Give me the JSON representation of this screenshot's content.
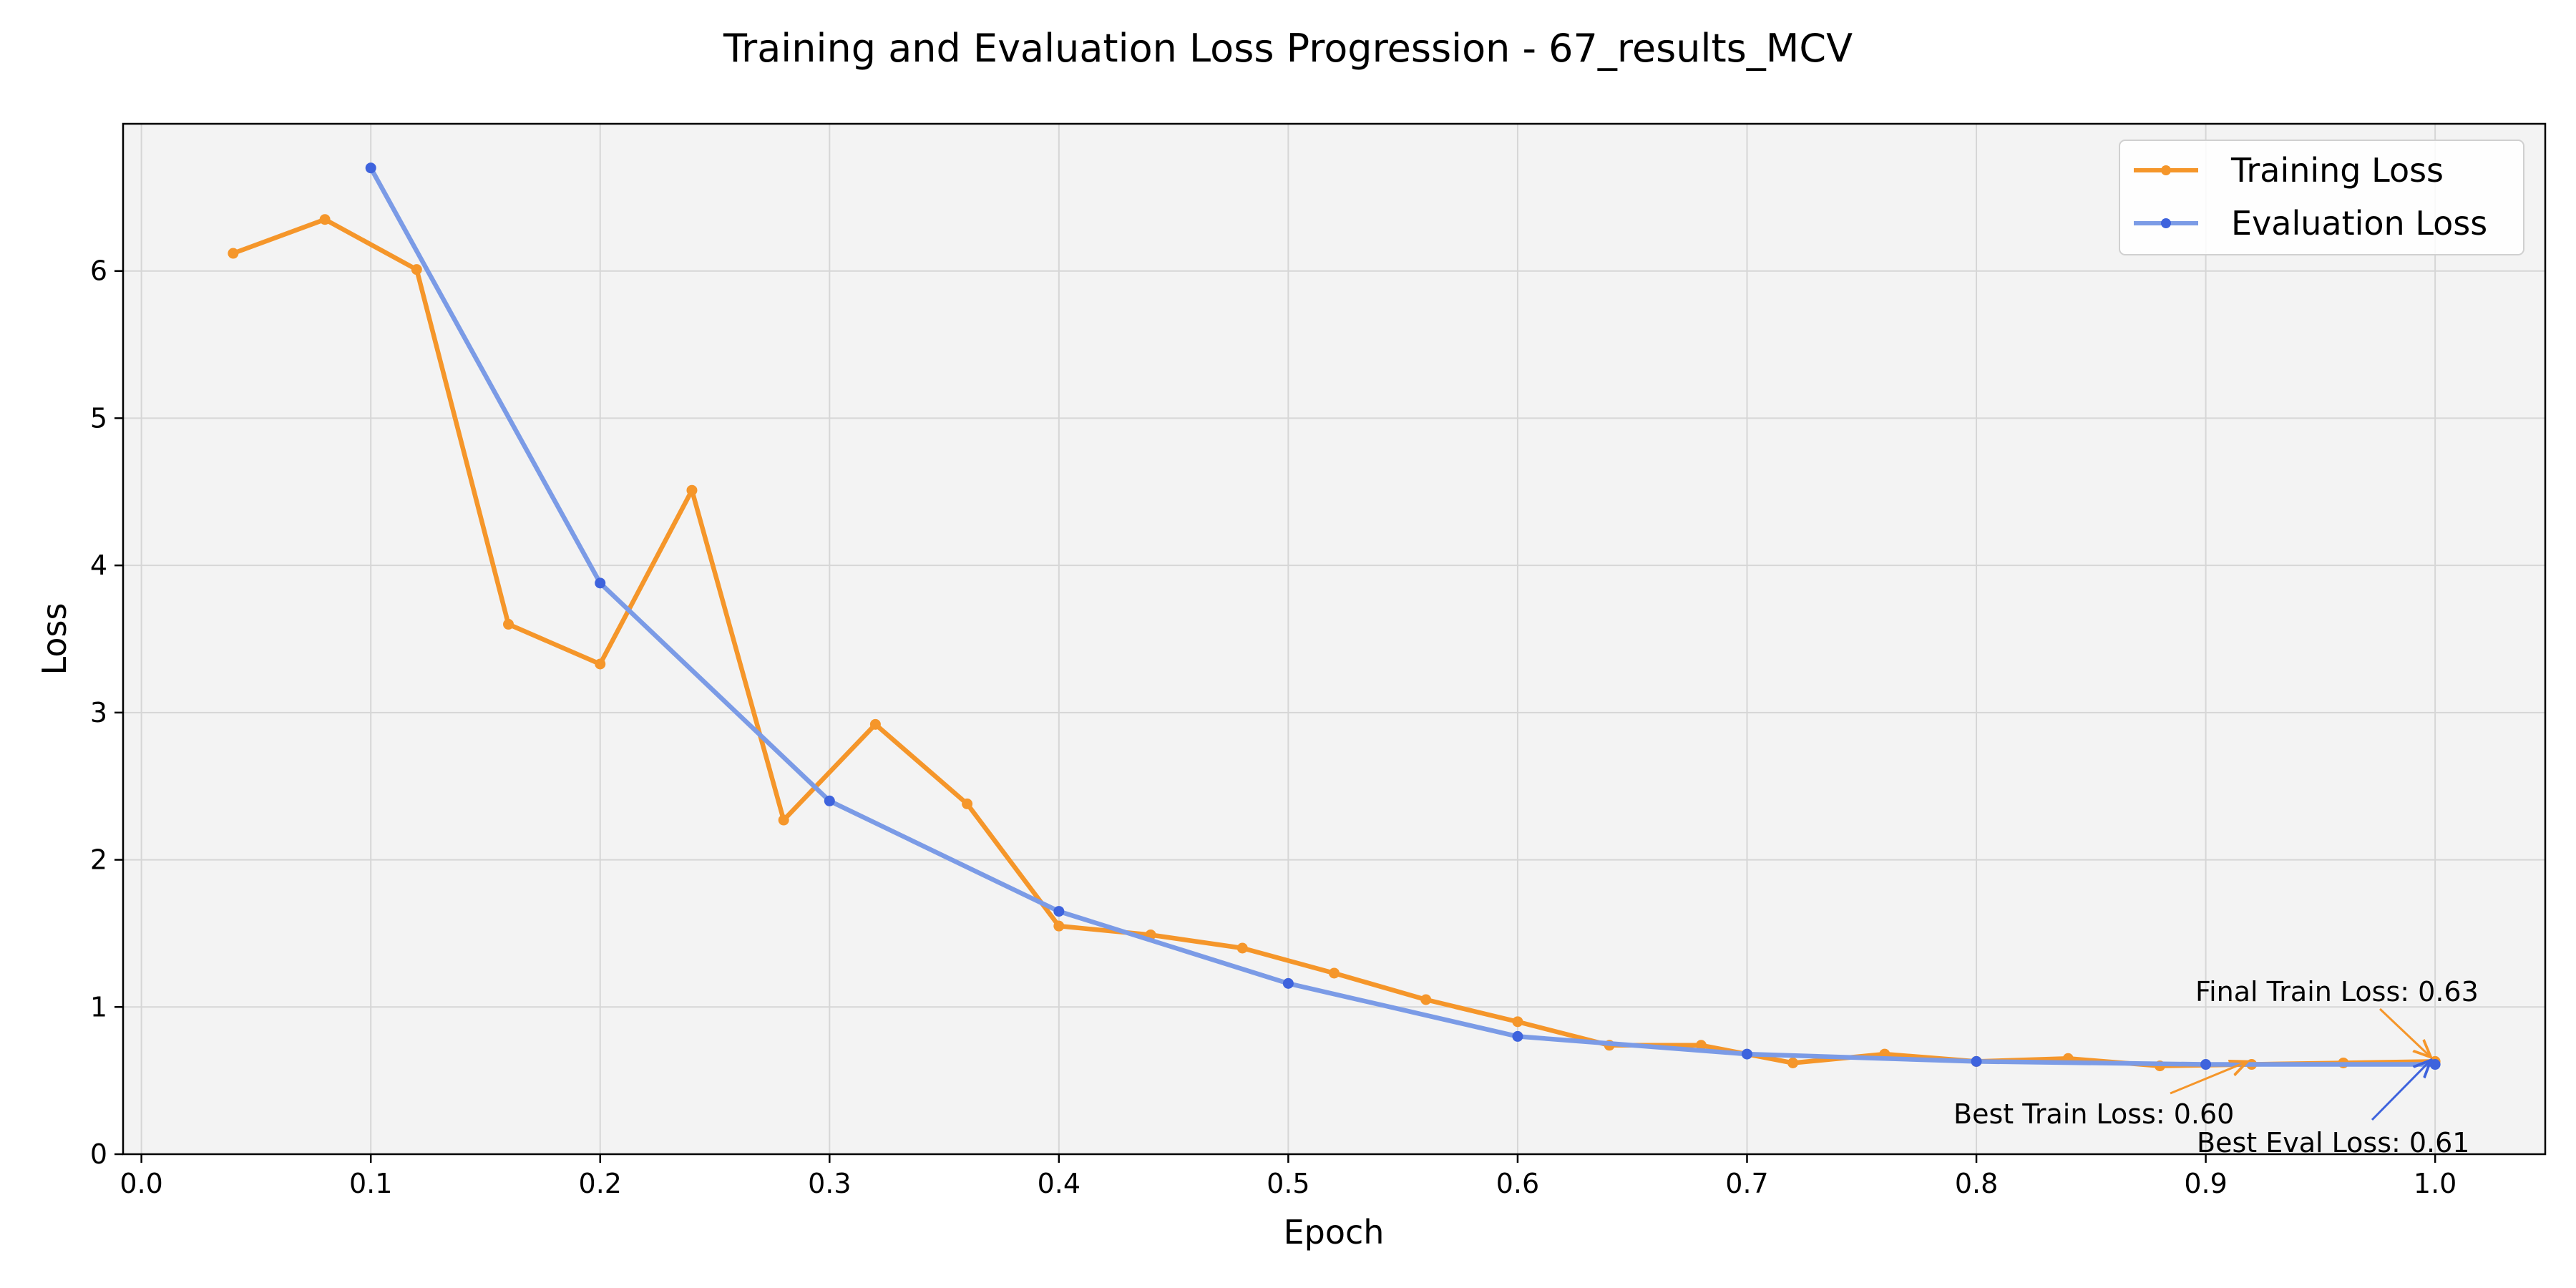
{
  "chart_data": {
    "type": "line",
    "title": "Training and Evaluation Loss Progression - 67_results_MCV",
    "xlabel": "Epoch",
    "ylabel": "Loss",
    "xlim": [
      -0.008,
      1.048
    ],
    "ylim": [
      0,
      7.0
    ],
    "xticks": [
      0.0,
      0.1,
      0.2,
      0.3,
      0.4,
      0.5,
      0.6,
      0.7,
      0.8,
      0.9,
      1.0
    ],
    "xtick_labels": [
      "0.0",
      "0.1",
      "0.2",
      "0.3",
      "0.4",
      "0.5",
      "0.6",
      "0.7",
      "0.8",
      "0.9",
      "1.0"
    ],
    "yticks": [
      0,
      1,
      2,
      3,
      4,
      5,
      6
    ],
    "ytick_labels": [
      "0",
      "1",
      "2",
      "3",
      "4",
      "5",
      "6"
    ],
    "grid": true,
    "legend_position": "top-right",
    "series": [
      {
        "name": "Training Loss",
        "color": "#f5962a",
        "x": [
          0.04,
          0.08,
          0.12,
          0.16,
          0.2,
          0.24,
          0.28,
          0.32,
          0.36,
          0.4,
          0.44,
          0.48,
          0.52,
          0.56,
          0.6,
          0.64,
          0.68,
          0.72,
          0.76,
          0.8,
          0.84,
          0.88,
          0.92,
          0.96,
          1.0
        ],
        "y": [
          6.12,
          6.35,
          6.01,
          3.6,
          3.33,
          4.51,
          2.27,
          2.92,
          2.38,
          1.55,
          1.49,
          1.4,
          1.23,
          1.05,
          0.9,
          0.74,
          0.74,
          0.62,
          0.68,
          0.63,
          0.65,
          0.6,
          0.61,
          0.62,
          0.63
        ]
      },
      {
        "name": "Evaluation Loss",
        "color": "#7b9be6",
        "x": [
          0.1,
          0.2,
          0.3,
          0.4,
          0.5,
          0.6,
          0.7,
          0.8,
          0.9,
          1.0
        ],
        "y": [
          6.7,
          3.88,
          2.4,
          1.65,
          1.16,
          0.8,
          0.68,
          0.63,
          0.61,
          0.61
        ]
      }
    ],
    "annotations": [
      {
        "text": "Final Train Loss: 0.63",
        "target": [
          1.0,
          0.63
        ],
        "color": "#f5962a"
      },
      {
        "text": "Best Train Loss: 0.60",
        "target": [
          0.92,
          0.6
        ],
        "color": "#f5962a"
      },
      {
        "text": "Best Eval Loss: 0.61",
        "target": [
          1.0,
          0.61
        ],
        "color": "#3e63dd"
      }
    ]
  }
}
